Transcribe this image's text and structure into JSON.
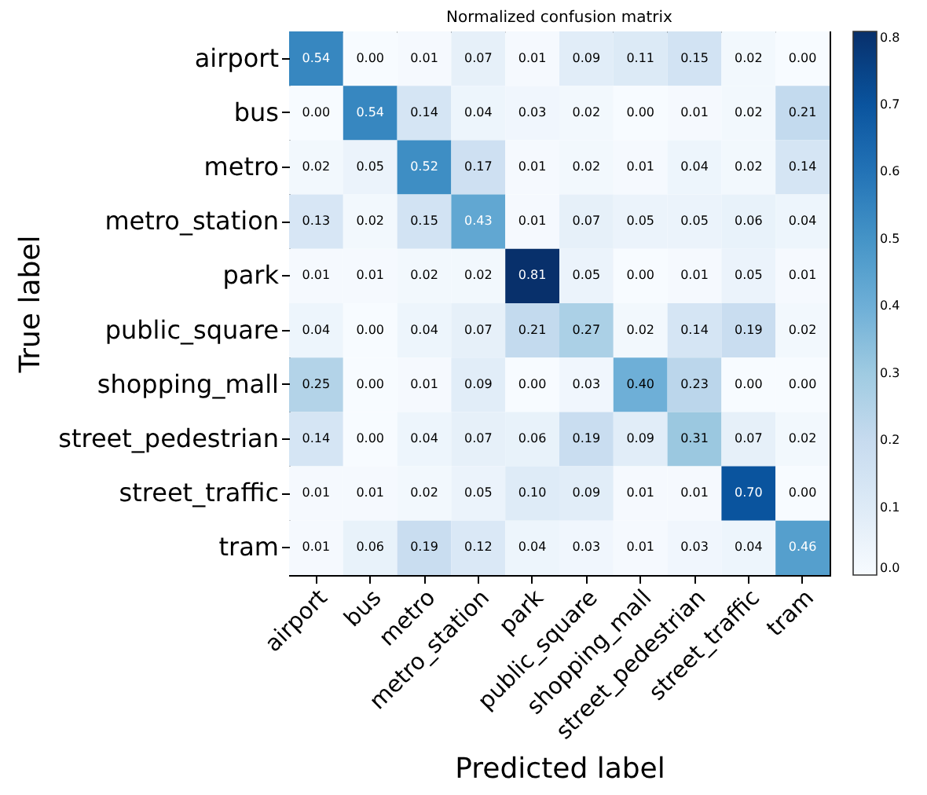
{
  "chart_data": {
    "type": "heatmap",
    "title": "Normalized confusion matrix",
    "xlabel": "Predicted label",
    "ylabel": "True label",
    "categories": [
      "airport",
      "bus",
      "metro",
      "metro_station",
      "park",
      "public_square",
      "shopping_mall",
      "street_pedestrian",
      "street_traffic",
      "tram"
    ],
    "y_categories": [
      "airport",
      "bus",
      "metro",
      "metro_station",
      "park",
      "public_square",
      "shopping_mall",
      "street_pedestrian",
      "street_traffic",
      "tram"
    ],
    "cells": [
      [
        0.54,
        0.0,
        0.01,
        0.07,
        0.01,
        0.09,
        0.11,
        0.15,
        0.02,
        0.0
      ],
      [
        0.0,
        0.54,
        0.14,
        0.04,
        0.03,
        0.02,
        0.0,
        0.01,
        0.02,
        0.21
      ],
      [
        0.02,
        0.05,
        0.52,
        0.17,
        0.01,
        0.02,
        0.01,
        0.04,
        0.02,
        0.14
      ],
      [
        0.13,
        0.02,
        0.15,
        0.43,
        0.01,
        0.07,
        0.05,
        0.05,
        0.06,
        0.04
      ],
      [
        0.01,
        0.01,
        0.02,
        0.02,
        0.81,
        0.05,
        0.0,
        0.01,
        0.05,
        0.01
      ],
      [
        0.04,
        0.0,
        0.04,
        0.07,
        0.21,
        0.27,
        0.02,
        0.14,
        0.19,
        0.02
      ],
      [
        0.25,
        0.0,
        0.01,
        0.09,
        0.0,
        0.03,
        0.4,
        0.23,
        0.0,
        0.0
      ],
      [
        0.14,
        0.0,
        0.04,
        0.07,
        0.06,
        0.19,
        0.09,
        0.31,
        0.07,
        0.02
      ],
      [
        0.01,
        0.01,
        0.02,
        0.05,
        0.1,
        0.09,
        0.01,
        0.01,
        0.7,
        0.0
      ],
      [
        0.01,
        0.06,
        0.19,
        0.12,
        0.04,
        0.03,
        0.01,
        0.03,
        0.04,
        0.46
      ]
    ],
    "cell_labels": [
      [
        "0.54",
        "0.00",
        "0.01",
        "0.07",
        "0.01",
        "0.09",
        "0.11",
        "0.15",
        "0.02",
        "0.00"
      ],
      [
        "0.00",
        "0.54",
        "0.14",
        "0.04",
        "0.03",
        "0.02",
        "0.00",
        "0.01",
        "0.02",
        "0.21"
      ],
      [
        "0.02",
        "0.05",
        "0.52",
        "0.17",
        "0.01",
        "0.02",
        "0.01",
        "0.04",
        "0.02",
        "0.14"
      ],
      [
        "0.13",
        "0.02",
        "0.15",
        "0.43",
        "0.01",
        "0.07",
        "0.05",
        "0.05",
        "0.06",
        "0.04"
      ],
      [
        "0.01",
        "0.01",
        "0.02",
        "0.02",
        "0.81",
        "0.05",
        "0.00",
        "0.01",
        "0.05",
        "0.01"
      ],
      [
        "0.04",
        "0.00",
        "0.04",
        "0.07",
        "0.21",
        "0.27",
        "0.02",
        "0.14",
        "0.19",
        "0.02"
      ],
      [
        "0.25",
        "0.00",
        "0.01",
        "0.09",
        "0.00",
        "0.03",
        "0.40",
        "0.23",
        "0.00",
        "0.00"
      ],
      [
        "0.14",
        "0.00",
        "0.04",
        "0.07",
        "0.06",
        "0.19",
        "0.09",
        "0.31",
        "0.07",
        "0.02"
      ],
      [
        "0.01",
        "0.01",
        "0.02",
        "0.05",
        "0.10",
        "0.09",
        "0.01",
        "0.01",
        "0.70",
        "0.00"
      ],
      [
        "0.01",
        "0.06",
        "0.19",
        "0.12",
        "0.04",
        "0.03",
        "0.01",
        "0.03",
        "0.04",
        "0.46"
      ]
    ],
    "clim": [
      0,
      0.81
    ],
    "cticks": [
      {
        "value": 0,
        "label": "0.0"
      },
      0.1,
      0.2,
      0.3,
      0.4,
      0.5,
      0.6,
      0.7,
      0.8
    ],
    "data_labels": true
  }
}
